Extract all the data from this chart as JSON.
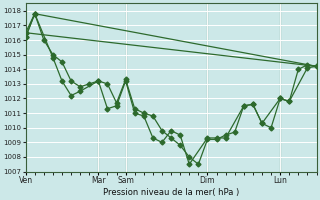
{
  "xlabel": "Pression niveau de la mer( hPa )",
  "bg_color": "#cce8e8",
  "grid_color": "#ffffff",
  "line_color": "#2d6a2d",
  "ylim": [
    1007,
    1018.5
  ],
  "ytick_min": 1007,
  "ytick_max": 1018,
  "xlim_min": 0,
  "xlim_max": 96,
  "xtick_positions": [
    0,
    24,
    33,
    60,
    84
  ],
  "xtick_labels": [
    "Ven",
    "Mar",
    "Sam",
    "Dim",
    "Lun"
  ],
  "vline_positions": [
    24,
    33,
    60,
    84
  ],
  "line1_x": [
    0,
    96
  ],
  "line1_y": [
    1016.5,
    1014.2
  ],
  "line2_x": [
    0,
    3,
    96
  ],
  "line2_y": [
    1016.5,
    1017.8,
    1014.2
  ],
  "line3_x": [
    0,
    3,
    6,
    9,
    12,
    15,
    18,
    21,
    24,
    27,
    30,
    33,
    36,
    39,
    42,
    45,
    48,
    51,
    54,
    57,
    60,
    63,
    66,
    69,
    72,
    75,
    78,
    81,
    84,
    87,
    90,
    93,
    96
  ],
  "line3_y": [
    1016.2,
    1017.8,
    1016.0,
    1015.0,
    1014.5,
    1013.2,
    1012.8,
    1013.0,
    1013.2,
    1013.0,
    1011.7,
    1013.3,
    1011.3,
    1011.0,
    1010.8,
    1009.8,
    1009.3,
    1008.8,
    1008.0,
    1007.5,
    1009.2,
    1009.2,
    1009.5,
    1009.7,
    1011.5,
    1011.6,
    1010.3,
    1010.0,
    1012.0,
    1011.8,
    1014.0,
    1014.3,
    1014.2
  ],
  "line4_x": [
    0,
    3,
    9,
    12,
    15,
    18,
    24,
    27,
    30,
    33,
    36,
    39,
    42,
    45,
    48,
    51,
    54,
    60,
    63,
    66,
    72,
    75,
    78,
    84,
    87,
    93,
    96
  ],
  "line4_y": [
    1016.2,
    1017.8,
    1014.8,
    1013.2,
    1012.2,
    1012.5,
    1013.2,
    1011.3,
    1011.5,
    1013.2,
    1011.0,
    1010.8,
    1009.3,
    1009.0,
    1009.8,
    1009.5,
    1007.5,
    1009.3,
    1009.3,
    1009.3,
    1011.5,
    1011.6,
    1010.3,
    1012.0,
    1011.8,
    1014.1,
    1014.2
  ]
}
